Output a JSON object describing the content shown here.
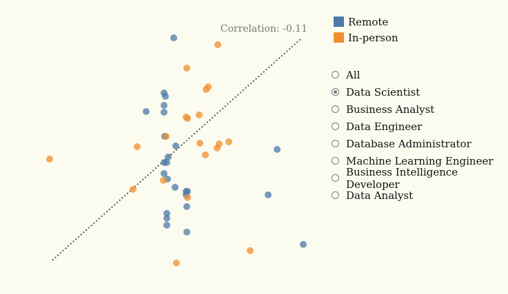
{
  "chart_data": {
    "type": "scatter",
    "annotation": "Correlation: -0.11",
    "colors": {
      "Remote": "#4e79a7",
      "In-person": "#f28e2b"
    },
    "legend": [
      {
        "label": "Remote",
        "color": "#4e79a7"
      },
      {
        "label": "In-person",
        "color": "#f28e2b"
      }
    ],
    "trendline": {
      "x": [
        76,
        437
      ],
      "y": [
        378,
        56
      ]
    },
    "series": [
      {
        "name": "Remote",
        "points": [
          [
            252,
            55
          ],
          [
            238,
            135
          ],
          [
            240,
            140
          ],
          [
            238,
            153
          ],
          [
            212,
            162
          ],
          [
            238,
            163
          ],
          [
            239,
            198
          ],
          [
            255,
            212
          ],
          [
            244,
            228
          ],
          [
            242,
            236
          ],
          [
            238,
            236
          ],
          [
            238,
            252
          ],
          [
            243,
            260
          ],
          [
            254,
            272
          ],
          [
            270,
            278
          ],
          [
            272,
            278
          ],
          [
            270,
            283
          ],
          [
            271,
            300
          ],
          [
            242,
            310
          ],
          [
            242,
            317
          ],
          [
            242,
            327
          ],
          [
            271,
            337
          ],
          [
            402,
            217
          ],
          [
            389,
            283
          ],
          [
            440,
            355
          ]
        ]
      },
      {
        "name": "In-person",
        "points": [
          [
            316,
            65
          ],
          [
            271,
            99
          ],
          [
            302,
            126
          ],
          [
            299,
            130
          ],
          [
            270,
            170
          ],
          [
            289,
            167
          ],
          [
            272,
            172
          ],
          [
            241,
            198
          ],
          [
            199,
            213
          ],
          [
            290,
            208
          ],
          [
            318,
            209
          ],
          [
            315,
            215
          ],
          [
            332,
            206
          ],
          [
            298,
            225
          ],
          [
            72,
            231
          ],
          [
            237,
            262
          ],
          [
            193,
            275
          ],
          [
            272,
            287
          ],
          [
            363,
            364
          ],
          [
            256,
            382
          ]
        ]
      }
    ]
  },
  "filters": {
    "selected": 1,
    "options": [
      "All",
      "Data Scientist",
      "Business Analyst",
      "Data Engineer",
      "Database Administrator",
      "Machine Learning Engineer",
      "Business Intelligence Developer",
      "Data Analyst"
    ]
  }
}
